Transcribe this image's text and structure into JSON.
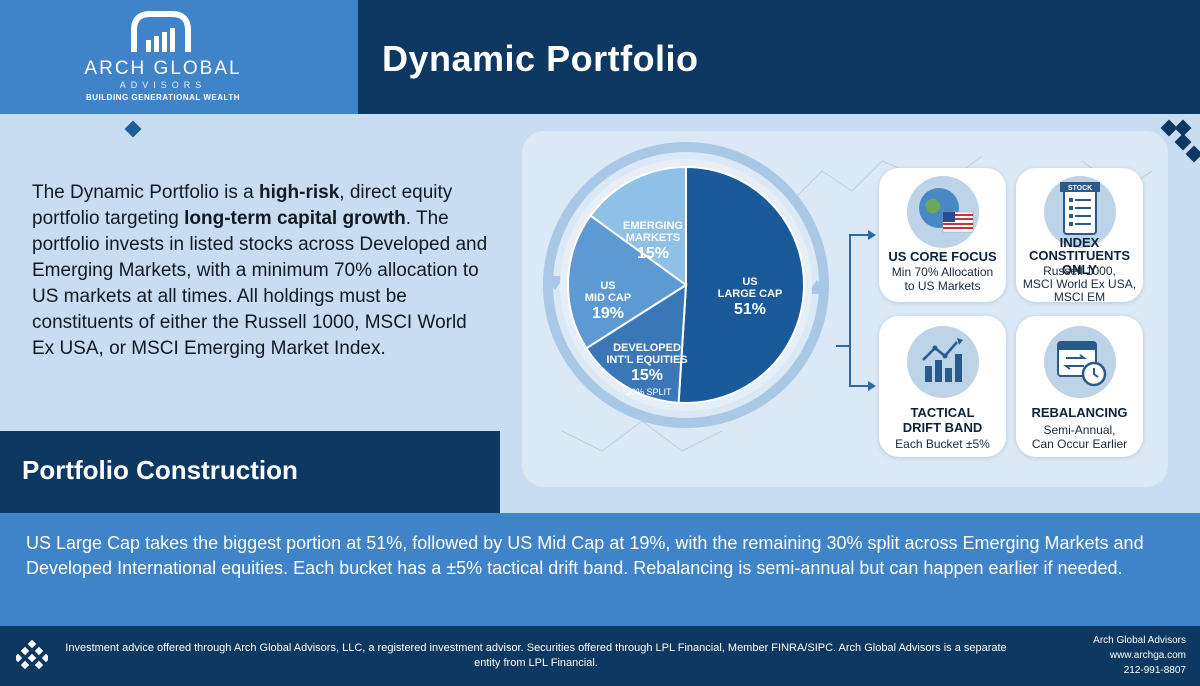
{
  "brand": {
    "name": "ARCH GLOBAL",
    "sub": "ADVISORS",
    "tagline": "BUILDING GENERATIONAL WEALTH"
  },
  "header": {
    "title": "Dynamic Portfolio"
  },
  "intro": {
    "t1": "The Dynamic Portfolio is a ",
    "b1": "high-risk",
    "t2": ", direct equity portfolio targeting ",
    "b2": "long-term capital growth",
    "t3": ". The portfolio invests in listed stocks across Developed and Emerging Markets, with a minimum 70% allocation to US markets at all times. All holdings must be constituents of either the Russell 1000, MSCI World Ex USA, or MSCI Emerging Market Index."
  },
  "section": {
    "title": "Portfolio Construction"
  },
  "allocation": {
    "us_large": {
      "l1": "US",
      "l2": "LARGE CAP",
      "pct": "51%",
      "value": 51,
      "color": "#1a5a9a"
    },
    "developed": {
      "l1": "DEVELOPED",
      "l2": "INT'L EQUITIES",
      "pct": "15%",
      "note": "*30% SPLIT",
      "value": 15,
      "color": "#3a77b6"
    },
    "us_mid": {
      "l1": "US",
      "l2": "MID CAP",
      "pct": "19%",
      "value": 19,
      "color": "#5d9ad4"
    },
    "emerging": {
      "l1": "EMERGING",
      "l2": "MARKETS",
      "pct": "15%",
      "value": 15,
      "color": "#8fc0e8"
    }
  },
  "tiles": {
    "us_core": {
      "title": "US CORE FOCUS",
      "body1": "Min 70% Allocation",
      "body2": "to US Markets",
      "icon": "globe-flag-icon"
    },
    "index": {
      "badge": "STOCK",
      "title1": "INDEX",
      "title2": "CONSTITUENTS ONLY",
      "body1": "Russell 1000,",
      "body2": "MSCI World Ex USA,",
      "body3": "MSCI EM",
      "icon": "stock-list-icon"
    },
    "tactical": {
      "title1": "TACTICAL",
      "title2": "DRIFT BAND",
      "body1": "Each Bucket ±5%",
      "icon": "bar-chart-icon"
    },
    "rebalancing": {
      "title1": "REBALANCING",
      "body1": "Semi-Annual,",
      "body2": "Can Occur Earlier",
      "icon": "calendar-clock-icon"
    }
  },
  "summary": {
    "text": "US Large Cap takes the biggest portion at 51%, followed by US Mid Cap at 19%, with the remaining 30% split across Emerging Markets and Developed International equities. Each bucket has a ±5% tactical drift band. Rebalancing is semi-annual but can happen earlier if needed."
  },
  "footer": {
    "disclosure": "Investment advice offered through Arch Global Advisors, LLC, a registered investment advisor. Securities offered through LPL Financial, Member FINRA/SIPC. Arch Global Advisors is a separate entity from LPL Financial.",
    "company": "Arch Global Advisors",
    "website": "www.archga.com",
    "phone": "212-991-8807"
  },
  "colors": {
    "navy": "#0d3862",
    "brand_blue": "#3f84c8",
    "background": "#c8ddf2"
  }
}
